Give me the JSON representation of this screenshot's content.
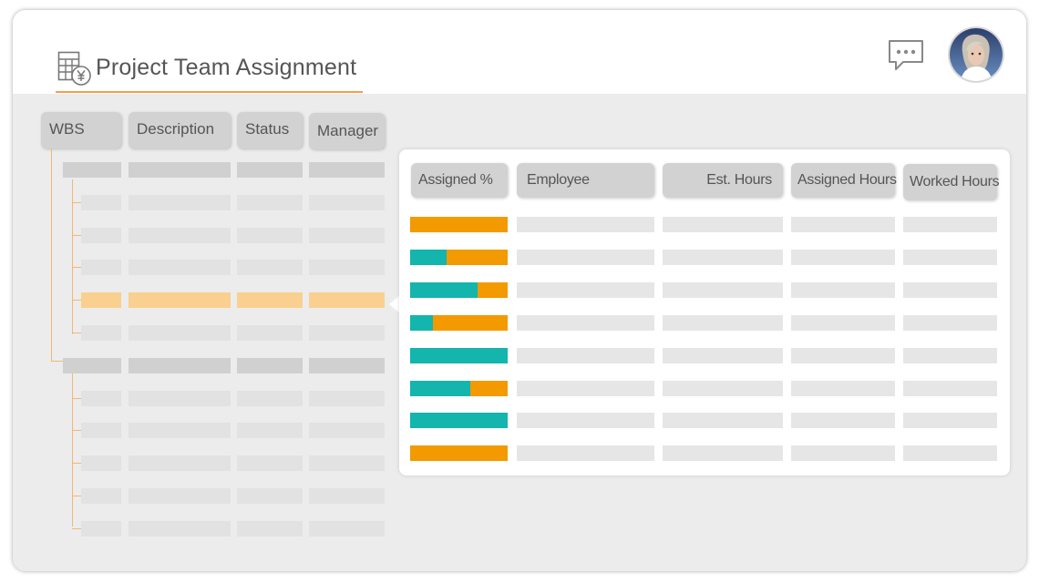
{
  "header": {
    "title": "Project Team Assignment",
    "title_icon": "spreadsheet-currency-icon",
    "chat_icon": "chat-bubble-icon",
    "avatar": "user-avatar"
  },
  "wbs_table": {
    "columns": [
      "WBS",
      "Description",
      "Status",
      "Manager"
    ],
    "rows": [
      {
        "level": 0,
        "state": "parent"
      },
      {
        "level": 1,
        "state": "normal"
      },
      {
        "level": 1,
        "state": "normal"
      },
      {
        "level": 1,
        "state": "normal"
      },
      {
        "level": 1,
        "state": "selected"
      },
      {
        "level": 1,
        "state": "normal"
      },
      {
        "level": 0,
        "state": "parent"
      },
      {
        "level": 1,
        "state": "normal"
      },
      {
        "level": 1,
        "state": "normal"
      },
      {
        "level": 1,
        "state": "normal"
      },
      {
        "level": 1,
        "state": "normal"
      },
      {
        "level": 1,
        "state": "normal"
      }
    ]
  },
  "assignment_table": {
    "columns": [
      "Assigned %",
      "Employee",
      "Est. Hours",
      "Assigned Hours",
      "Worked Hours"
    ],
    "rows": [
      {
        "assigned_fraction": 0.0
      },
      {
        "assigned_fraction": 0.37
      },
      {
        "assigned_fraction": 0.69
      },
      {
        "assigned_fraction": 0.23
      },
      {
        "assigned_fraction": 1.0
      },
      {
        "assigned_fraction": 0.62
      },
      {
        "assigned_fraction": 1.0
      },
      {
        "assigned_fraction": 0.0
      }
    ]
  },
  "colors": {
    "accent": "#f0a050",
    "assigned": "#13b5ad",
    "unassigned": "#f29a00",
    "selected_row": "#f9d08f"
  }
}
